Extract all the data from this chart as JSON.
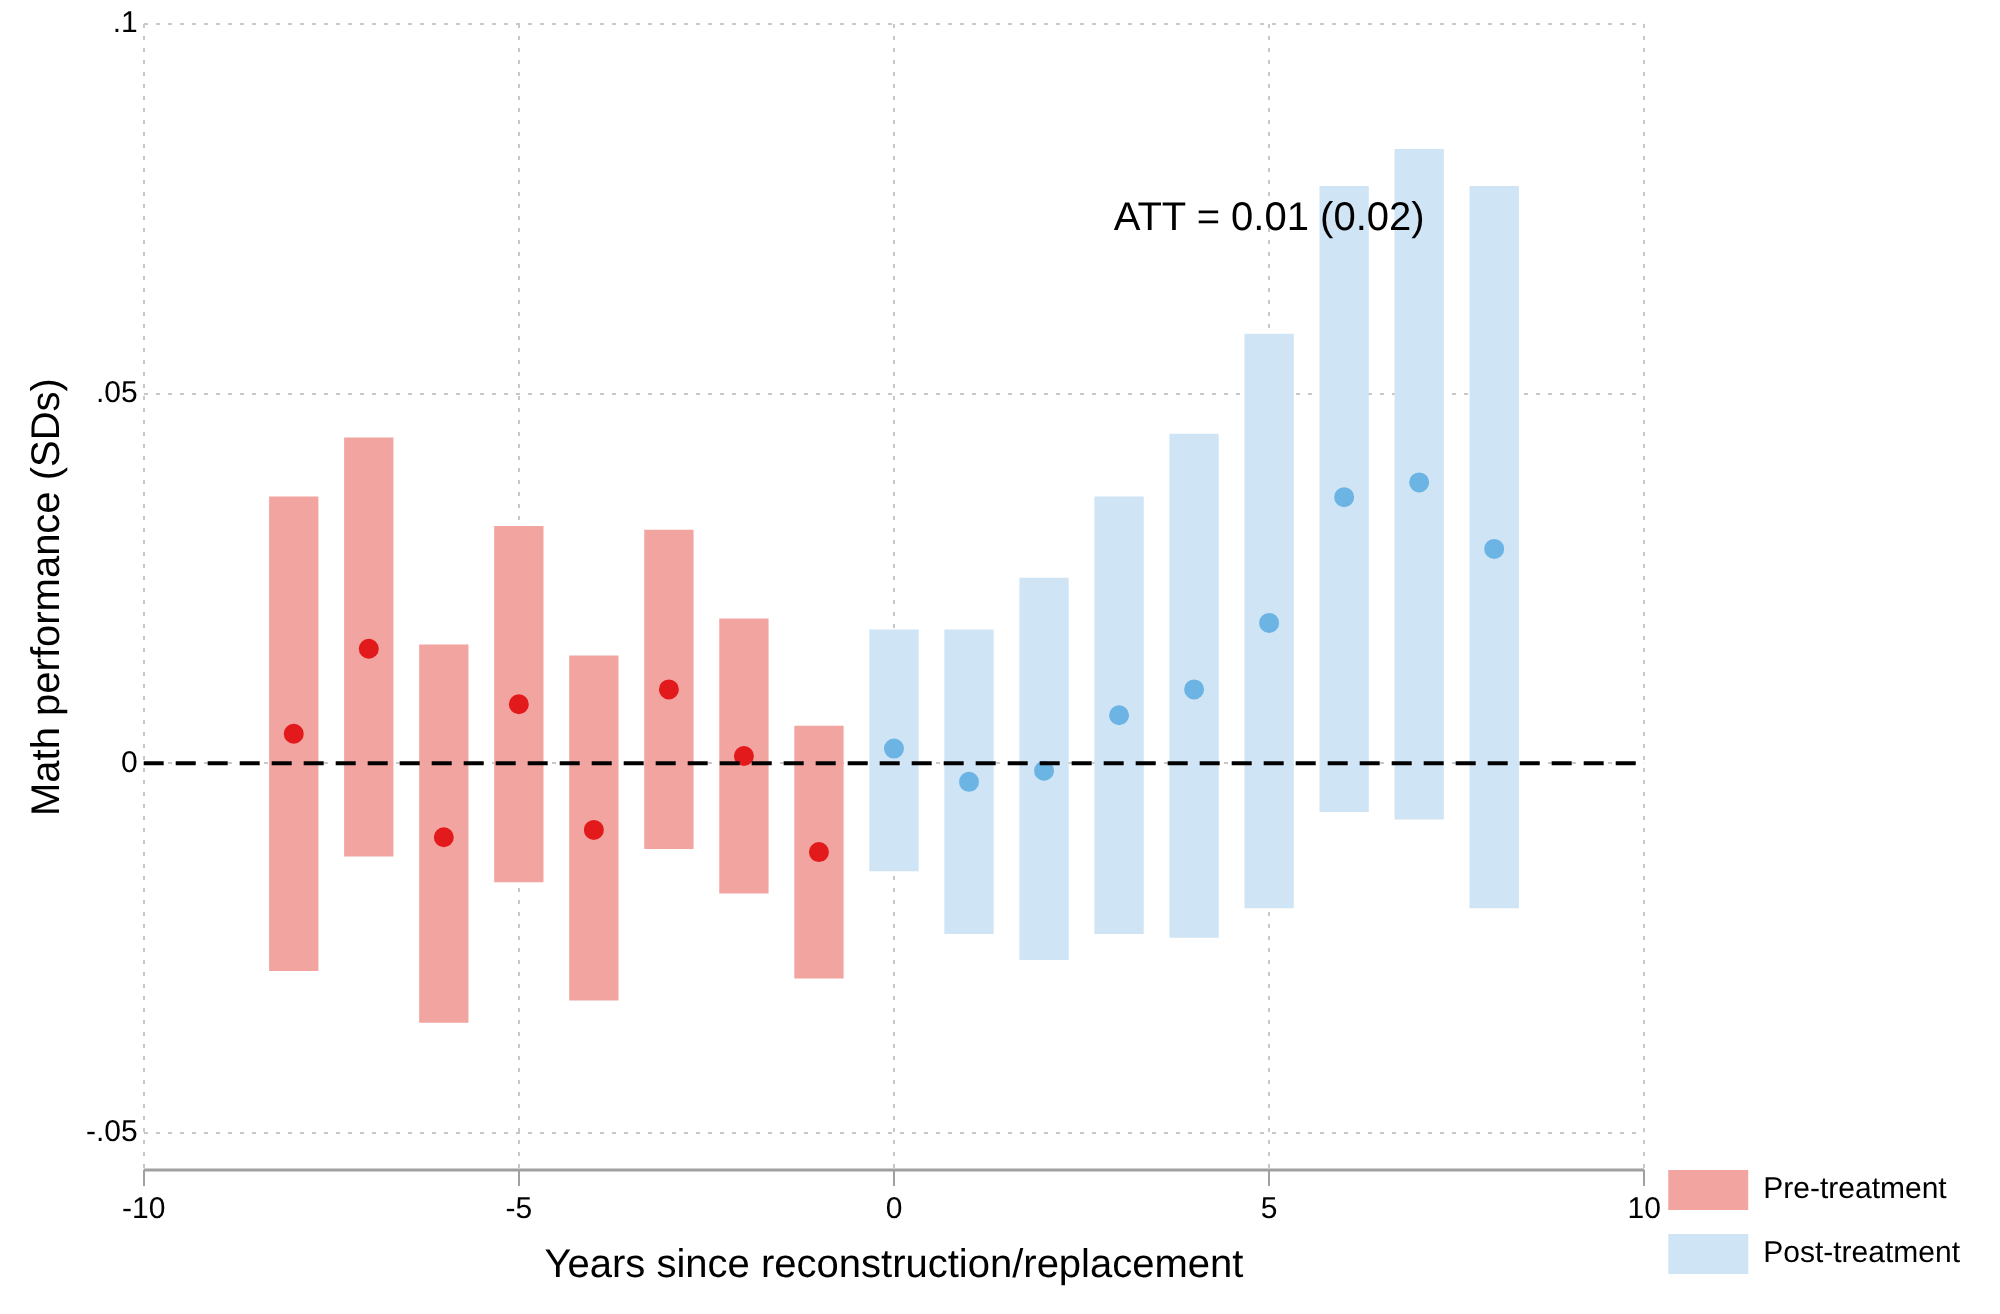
{
  "chart_data": {
    "type": "bar",
    "xlabel": "Years since reconstruction/replacement",
    "ylabel": "Math performance (SDs)",
    "xlim": [
      -10,
      10
    ],
    "xticks": [
      -10,
      -5,
      0,
      5,
      10
    ],
    "ylim": [
      -0.055,
      0.1
    ],
    "yticks": [
      {
        "value": -0.05,
        "label": "-.05"
      },
      {
        "value": 0,
        "label": "0"
      },
      {
        "value": 0.05,
        "label": ".05"
      },
      {
        "value": 0.1,
        "label": ".1"
      }
    ],
    "grid": true,
    "legend": "right",
    "marker": "circle",
    "ref_lines": [
      {
        "axis": "y",
        "value": 0,
        "color": "#000000",
        "line_style": "dashed"
      }
    ],
    "annotations": [
      "ATT = 0.01 (0.02)"
    ],
    "series": [
      {
        "name": "Pre-treatment",
        "color": "#f2a5a0",
        "x": [
          -8,
          -7,
          -6,
          -5,
          -4,
          -3,
          -2,
          -1
        ],
        "base": [
          -0.028,
          -0.0125,
          -0.035,
          -0.016,
          -0.032,
          -0.0115,
          -0.0175,
          -0.029
        ],
        "values": [
          0.064,
          0.0565,
          0.051,
          0.048,
          0.0465,
          0.043,
          0.037,
          0.034
        ]
      },
      {
        "name": "Post-treatment",
        "color": "#cfe4f5",
        "x": [
          0,
          1,
          2,
          3,
          4,
          5,
          6,
          7,
          8
        ],
        "base": [
          -0.0145,
          -0.023,
          -0.0265,
          -0.023,
          -0.0235,
          -0.0195,
          -0.0065,
          -0.0075,
          -0.0195
        ],
        "values": [
          0.0325,
          0.041,
          0.0515,
          0.059,
          0.068,
          0.0775,
          0.0845,
          0.0905,
          0.0975
        ]
      },
      {
        "type": "scatter",
        "color": "#e31a1c",
        "x": [
          -8,
          -7,
          -6,
          -5,
          -4,
          -3,
          -2,
          -1
        ],
        "values": [
          0.004,
          0.0155,
          -0.01,
          0.008,
          -0.009,
          0.01,
          0.001,
          -0.012
        ]
      },
      {
        "type": "scatter",
        "color": "#6cb4e4",
        "x": [
          0,
          1,
          2,
          3,
          4,
          5,
          6,
          7,
          8
        ],
        "values": [
          0.002,
          -0.0025,
          -0.001,
          0.0065,
          0.01,
          0.019,
          0.036,
          0.038,
          0.029
        ]
      }
    ]
  }
}
